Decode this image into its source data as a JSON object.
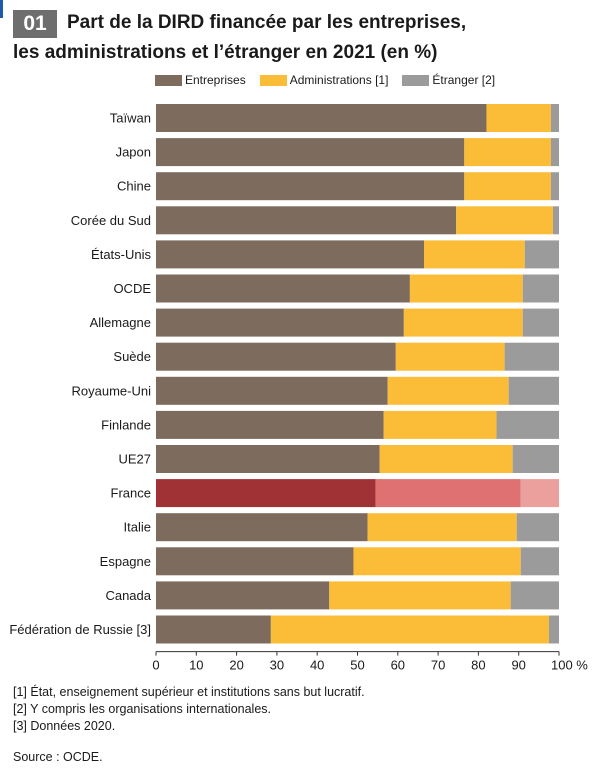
{
  "header": {
    "badge": "01",
    "title": "Part de la DIRD financée par les entreprises,",
    "subtitle": "les administrations et l’étranger en 2021 (en %)"
  },
  "colors": {
    "entreprises": "#7d6b5e",
    "administrations": "#fbbd37",
    "etranger": "#9b9b9b",
    "france_entreprises": "#a03236",
    "france_administrations": "#e07173",
    "france_etranger": "#eba09e"
  },
  "chart_data": {
    "type": "bar",
    "orientation": "horizontal",
    "stacked": true,
    "categories": [
      "Taïwan",
      "Japon",
      "Chine",
      "Corée du Sud",
      "États-Unis",
      "OCDE",
      "Allemagne",
      "Suède",
      "Royaume-Uni",
      "Finlande",
      "UE27",
      "France",
      "Italie",
      "Espagne",
      "Canada",
      "Fédération de Russie [3]"
    ],
    "series": [
      {
        "name": "Entreprises",
        "values": [
          82,
          76.5,
          76.5,
          74.5,
          66.5,
          63,
          61.5,
          59.5,
          57.5,
          56.5,
          55.5,
          54.5,
          52.5,
          49,
          43,
          28.5
        ]
      },
      {
        "name": "Administrations [1]",
        "values": [
          16,
          21.5,
          21.5,
          24,
          25,
          28,
          29.5,
          27,
          30,
          28,
          33,
          36,
          37,
          41.5,
          45,
          69
        ]
      },
      {
        "name": "Étranger [2]",
        "values": [
          2,
          2,
          2,
          1.5,
          8.5,
          9,
          9,
          13.5,
          12.5,
          15.5,
          11.5,
          9.5,
          10.5,
          9.5,
          12,
          2.5
        ]
      }
    ],
    "highlight": "France",
    "xlim": [
      0,
      100
    ],
    "xticks": [
      "0",
      "10",
      "20",
      "30",
      "40",
      "50",
      "60",
      "70",
      "80",
      "90",
      "100 %"
    ],
    "legend_position": "top"
  },
  "footnotes": [
    "[1] État, enseignement supérieur et institutions sans but lucratif.",
    "[2] Y compris les organisations internationales.",
    "[3] Données 2020."
  ],
  "source": "Source : OCDE."
}
